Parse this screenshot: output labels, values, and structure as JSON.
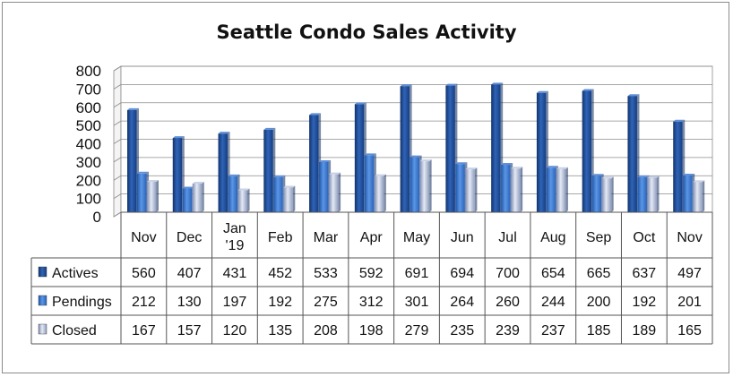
{
  "chart_data": {
    "type": "bar",
    "title": "Seattle Condo Sales Activity",
    "categories": [
      "Nov",
      "Dec",
      "Jan\n'19",
      "Feb",
      "Mar",
      "Apr",
      "May",
      "Jun",
      "Jul",
      "Aug",
      "Sep",
      "Oct",
      "Nov"
    ],
    "series": [
      {
        "name": "Actives",
        "values": [
          560,
          407,
          431,
          452,
          533,
          592,
          691,
          694,
          700,
          654,
          665,
          637,
          497
        ],
        "color": "#1f4e9a"
      },
      {
        "name": "Pendings",
        "values": [
          212,
          130,
          197,
          192,
          275,
          312,
          301,
          264,
          260,
          244,
          200,
          192,
          201
        ],
        "color": "#3a78d0"
      },
      {
        "name": "Closed",
        "values": [
          167,
          157,
          120,
          135,
          208,
          198,
          279,
          235,
          239,
          237,
          185,
          189,
          165
        ],
        "color": "#aab8d4"
      }
    ],
    "yticks": [
      0,
      100,
      200,
      300,
      400,
      500,
      600,
      700,
      800
    ],
    "ylim": [
      0,
      800
    ],
    "grid": true,
    "legend": "data-table"
  }
}
